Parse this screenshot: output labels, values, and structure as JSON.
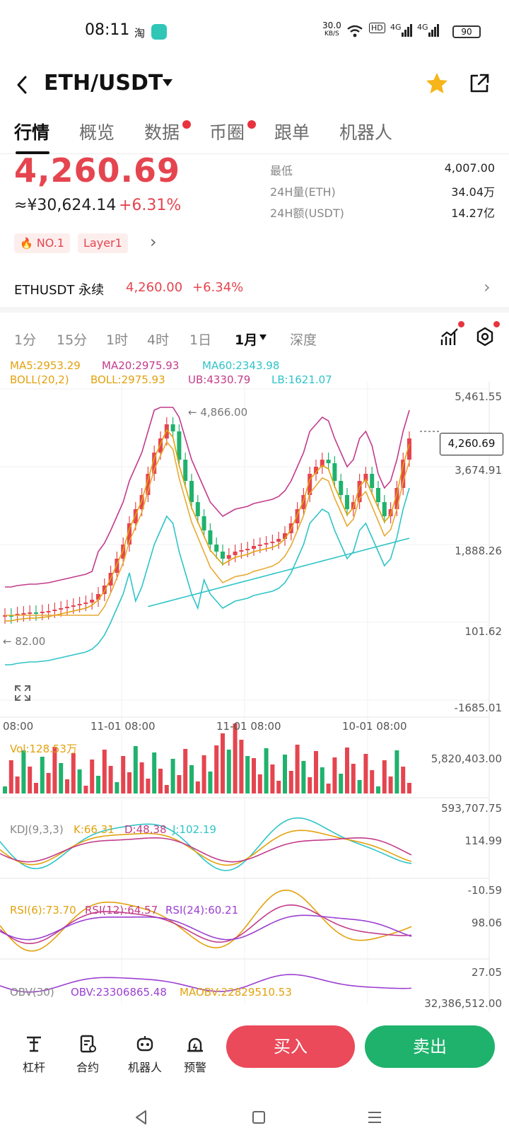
{
  "status": {
    "time": "08:11",
    "app_icon_1": "淘",
    "net_speed_top": "30.0",
    "net_speed_unit": "KB/S",
    "hd_label": "HD",
    "sig1": "4G",
    "sig2": "4G",
    "battery": "90"
  },
  "header": {
    "pair": "ETH/USDT"
  },
  "tabs": [
    "行情",
    "概览",
    "数据",
    "币圈",
    "跟单",
    "机器人"
  ],
  "ticker": {
    "price": "4,260.69",
    "cny": "≈¥30,624.14",
    "change": "+6.31%",
    "badges": [
      "NO.1",
      "Layer1"
    ],
    "stats": [
      {
        "label": "最低",
        "value": "4,007.00"
      },
      {
        "label": "24H量(ETH)",
        "value": "34.04万"
      },
      {
        "label": "24H额(USDT)",
        "value": "14.27亿"
      }
    ]
  },
  "perp": {
    "name": "ETHUSDT 永续",
    "price": "4,260.00",
    "change": "+6.34%"
  },
  "intervals": [
    "1分",
    "15分",
    "1时",
    "4时",
    "1日",
    "1月",
    "深度"
  ],
  "indicators": {
    "ma5": "MA5:2953.29",
    "ma20": "MA20:2975.93",
    "ma60": "MA60:2343.98",
    "boll": "BOLL(20,2)",
    "boll_v": "BOLL:2975.93",
    "ub": "UB:4330.79",
    "lb": "LB:1621.07",
    "vol": "Vol:128.53万",
    "kdj": "KDJ(9,3,3)",
    "k": "K:66.31",
    "d": "D:48.38",
    "j": "J:102.19",
    "rsi6": "RSI(6):73.70",
    "rsi12": "RSI(12):64.57",
    "rsi24": "RSI(24):60.21",
    "obv": "OBV(30)",
    "obv_v": "OBV:23306865.48",
    "maobv": "MAOBV:22829510.53"
  },
  "chart": {
    "y_labels": [
      "5,461.55",
      "3,674.91",
      "1,888.26",
      "101.62",
      "-1685.01"
    ],
    "current_price_tag": "4,260.69",
    "high_mark": "← 4,866.00",
    "low_mark": "← 82.00",
    "x_labels": [
      "08:00",
      "11-01 08:00",
      "11-01 08:00",
      "10-01 08:00"
    ],
    "vol_labels": [
      "5,820,403.00",
      "593,707.75"
    ],
    "kdj_labels": [
      "114.99",
      "-10.59"
    ],
    "rsi_labels": [
      "98.06",
      "27.05"
    ],
    "obv_label": "32,386,512.00"
  },
  "bottom": {
    "items": [
      "杠杆",
      "合约",
      "机器人",
      "预警"
    ],
    "buy": "买入",
    "sell": "卖出"
  },
  "colors": {
    "up": "#e5454f",
    "down": "#1fb26d"
  }
}
